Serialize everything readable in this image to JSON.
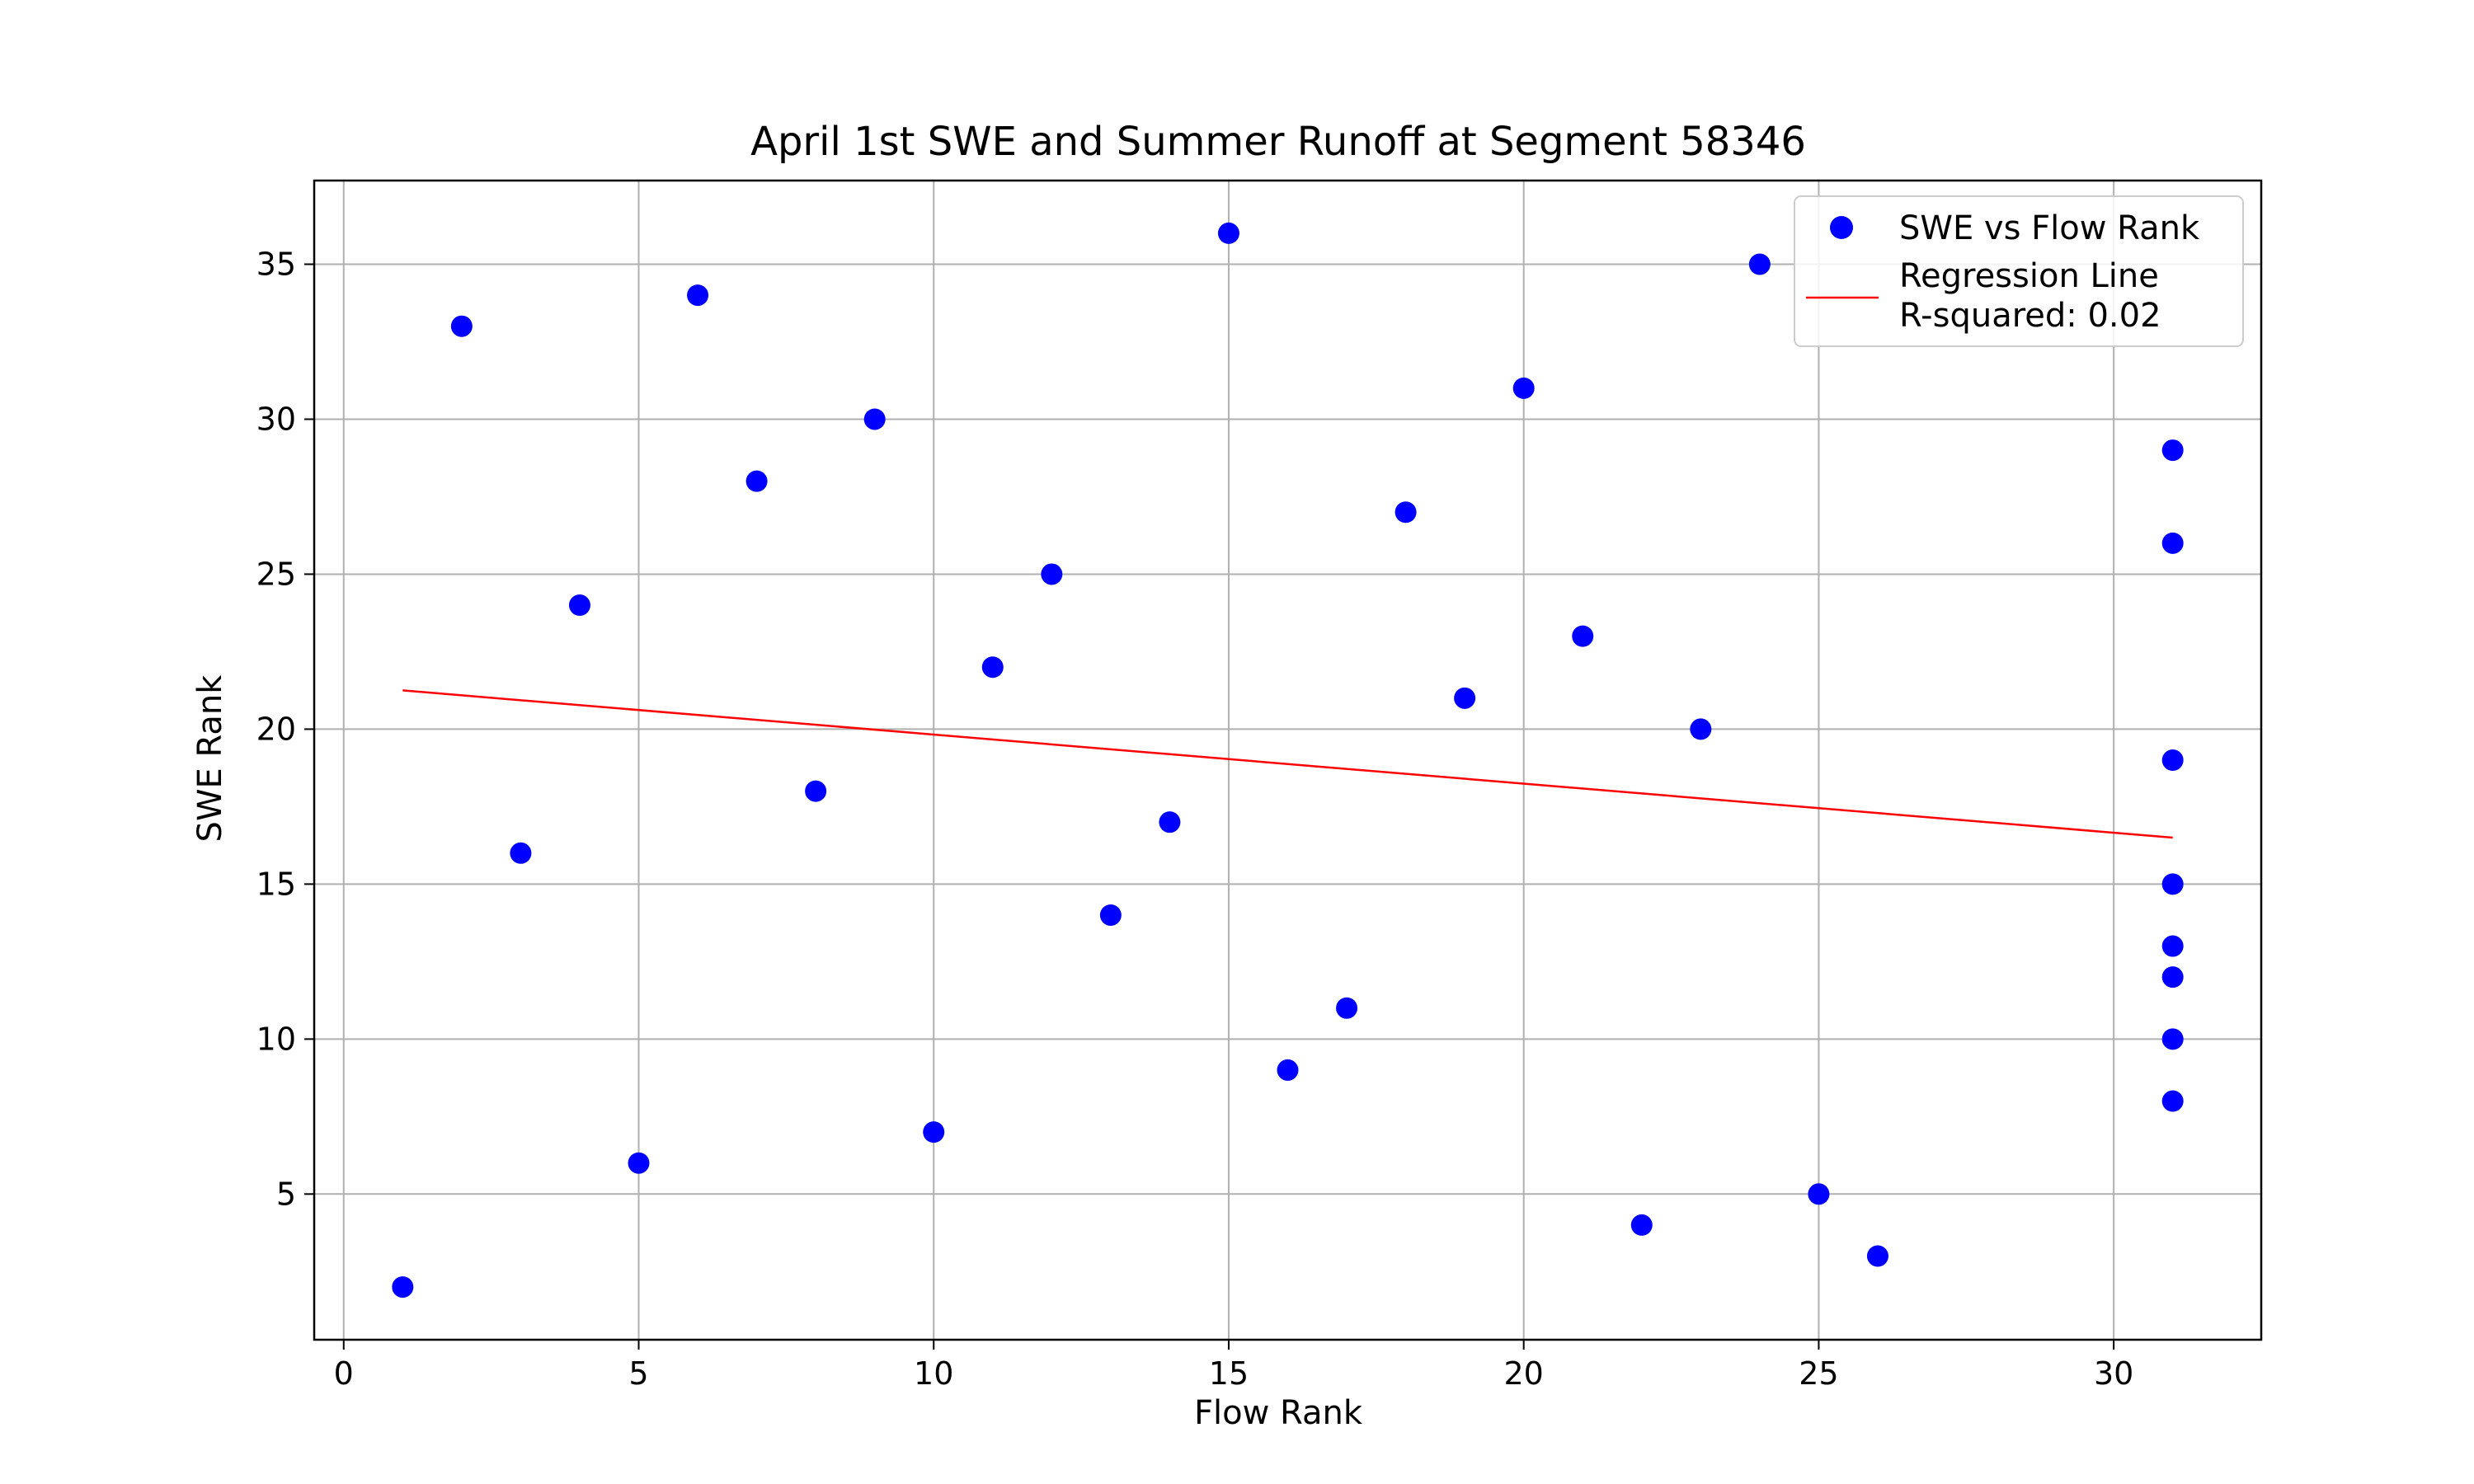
{
  "chart_data": {
    "type": "scatter",
    "title": "April 1st SWE and Summer Runoff at Segment 58346",
    "xlabel": "Flow Rank",
    "ylabel": "SWE Rank",
    "xlim": [
      -0.5,
      32.5
    ],
    "ylim": [
      0.3,
      37.7
    ],
    "xticks": [
      0,
      5,
      10,
      15,
      20,
      25,
      30
    ],
    "yticks": [
      5,
      10,
      15,
      20,
      25,
      30,
      35
    ],
    "grid": true,
    "legend_position": "top-right",
    "colors": {
      "points": "#0000ff",
      "regression": "#ff0000",
      "grid": "#b0b0b0"
    },
    "series": [
      {
        "name": "SWE vs Flow Rank",
        "kind": "scatter",
        "points": [
          [
            1,
            2
          ],
          [
            2,
            33
          ],
          [
            3,
            16
          ],
          [
            4,
            24
          ],
          [
            5,
            6
          ],
          [
            6,
            34
          ],
          [
            7,
            28
          ],
          [
            8,
            18
          ],
          [
            9,
            30
          ],
          [
            10,
            7
          ],
          [
            11,
            22
          ],
          [
            12,
            25
          ],
          [
            13,
            14
          ],
          [
            14,
            17
          ],
          [
            15,
            36
          ],
          [
            16,
            9
          ],
          [
            17,
            11
          ],
          [
            18,
            27
          ],
          [
            19,
            21
          ],
          [
            20,
            31
          ],
          [
            21,
            23
          ],
          [
            22,
            4
          ],
          [
            23,
            20
          ],
          [
            24,
            35
          ],
          [
            25,
            5
          ],
          [
            26,
            3
          ],
          [
            31,
            29
          ],
          [
            31,
            26
          ],
          [
            31,
            19
          ],
          [
            31,
            15
          ],
          [
            31,
            13
          ],
          [
            31,
            12
          ],
          [
            31,
            10
          ],
          [
            31,
            8
          ]
        ]
      },
      {
        "name": "Regression Line\nR-squared: 0.02",
        "kind": "line",
        "points": [
          [
            1,
            21.25
          ],
          [
            31,
            16.5
          ]
        ]
      }
    ]
  }
}
